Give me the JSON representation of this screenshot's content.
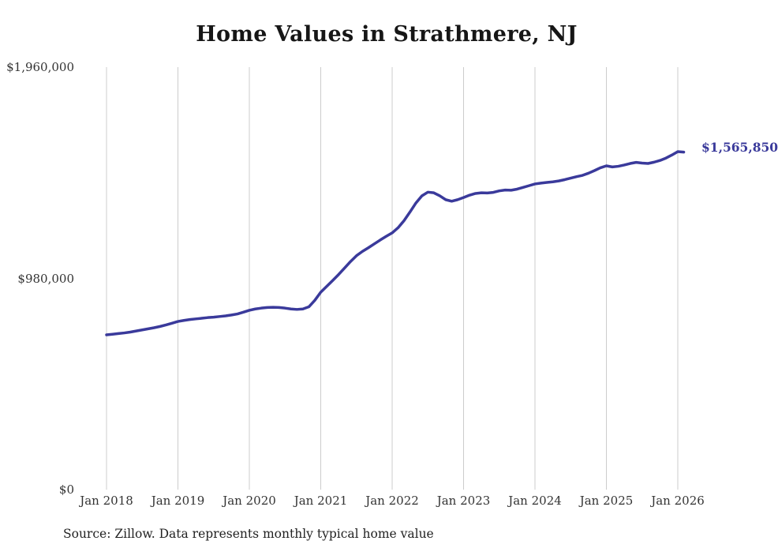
{
  "title": "Home Values in Strathmere, NJ",
  "source_note": "Source: Zillow. Data represents monthly typical home value",
  "end_label": "$1,565,850",
  "colors": {
    "line": "#3a3a9b",
    "grid": "#cccccc",
    "text": "#333333",
    "title": "#161616"
  },
  "chart_data": {
    "type": "line",
    "title": "Home Values in Strathmere, NJ",
    "xlabel": "",
    "ylabel": "",
    "grid": "vertical-only",
    "legend": "none",
    "ylim": [
      0,
      1960000
    ],
    "y_ticks": [
      0,
      980000,
      1960000
    ],
    "y_tick_labels": [
      "$0",
      "$980,000",
      "$1,960,000"
    ],
    "x_tick_labels": [
      "Jan 2018",
      "Jan 2019",
      "Jan 2020",
      "Jan 2021",
      "Jan 2022",
      "Jan 2023",
      "Jan 2024",
      "Jan 2025",
      "Jan 2026"
    ],
    "series": [
      {
        "name": "Monthly typical home value",
        "start_month": "2018-01",
        "end_month": "2026-02",
        "final_value": 1565850,
        "values": [
          718000,
          721000,
          724000,
          727000,
          731000,
          736000,
          741000,
          746000,
          751000,
          757000,
          764000,
          772000,
          780000,
          785000,
          789000,
          792000,
          795000,
          798000,
          800000,
          803000,
          806000,
          810000,
          815000,
          823000,
          832000,
          838000,
          842000,
          845000,
          846000,
          845000,
          842000,
          838000,
          836000,
          838000,
          848000,
          878000,
          916000,
          943000,
          970000,
          998000,
          1028000,
          1058000,
          1085000,
          1105000,
          1122000,
          1140000,
          1158000,
          1175000,
          1191000,
          1215000,
          1248000,
          1288000,
          1330000,
          1363000,
          1380000,
          1377000,
          1363000,
          1345000,
          1338000,
          1345000,
          1355000,
          1366000,
          1374000,
          1377000,
          1376000,
          1379000,
          1386000,
          1390000,
          1389000,
          1394000,
          1402000,
          1410000,
          1418000,
          1422000,
          1425000,
          1428000,
          1432000,
          1438000,
          1445000,
          1452000,
          1458000,
          1468000,
          1480000,
          1493000,
          1502000,
          1497000,
          1500000,
          1506000,
          1513000,
          1518000,
          1515000,
          1513000,
          1519000,
          1527000,
          1538000,
          1552000,
          1568000,
          1565850
        ]
      }
    ]
  }
}
